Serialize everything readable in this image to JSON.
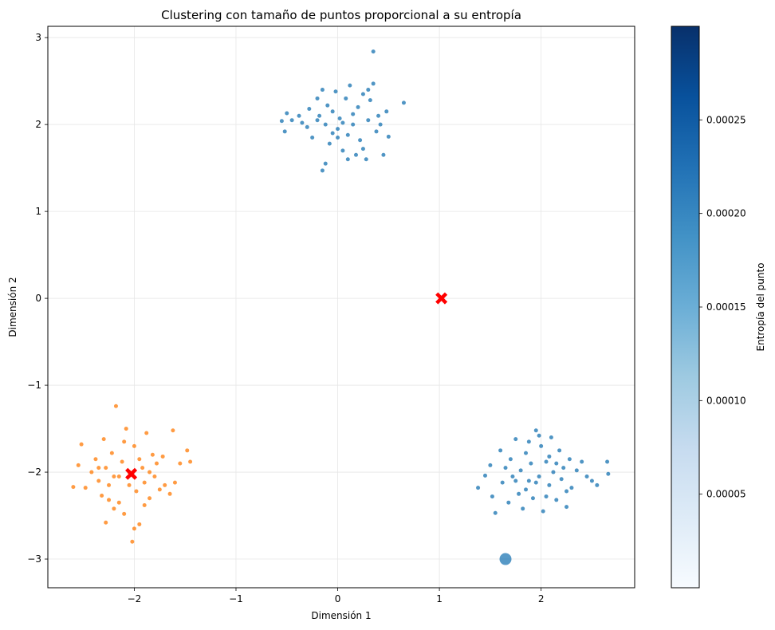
{
  "chart_data": {
    "type": "scatter",
    "title": "Clustering con tamaño de puntos proporcional a su entropía",
    "xlabel": "Dimensión 1",
    "ylabel": "Dimensión 2",
    "xlim": [
      -2.85,
      2.92
    ],
    "ylim": [
      -3.33,
      3.13
    ],
    "xticks": [
      -2,
      -1,
      0,
      1,
      2
    ],
    "yticks": [
      -3,
      -2,
      -1,
      0,
      1,
      2,
      3
    ],
    "grid": true,
    "colorbar": {
      "label": "Entropía del punto",
      "range": [
        0.0,
        0.0003
      ],
      "ticks": [
        5e-05,
        0.0001,
        0.00015,
        0.0002,
        0.00025
      ],
      "tick_labels": [
        "0.00005",
        "0.00010",
        "0.00015",
        "0.00020",
        "0.00025"
      ],
      "colormap": "Blues"
    },
    "colors": {
      "cluster_blue": "#1f77b4",
      "cluster_orange": "#ff7f0e",
      "centroid": "#ff0000"
    },
    "clusters": [
      {
        "center": [
          0.08,
          2.0
        ],
        "color": "cluster_blue",
        "points": [
          [
            -0.55,
            2.04
          ],
          [
            -0.5,
            2.13
          ],
          [
            -0.52,
            1.92
          ],
          [
            -0.45,
            2.05
          ],
          [
            -0.38,
            2.1
          ],
          [
            -0.35,
            2.02
          ],
          [
            -0.3,
            1.97
          ],
          [
            -0.28,
            2.18
          ],
          [
            -0.25,
            1.85
          ],
          [
            -0.2,
            2.3
          ],
          [
            -0.18,
            2.1
          ],
          [
            -0.15,
            2.4
          ],
          [
            -0.12,
            2.0
          ],
          [
            -0.1,
            2.22
          ],
          [
            -0.08,
            1.78
          ],
          [
            -0.05,
            2.15
          ],
          [
            -0.02,
            2.38
          ],
          [
            0.0,
            1.95
          ],
          [
            0.02,
            2.07
          ],
          [
            0.05,
            1.7
          ],
          [
            0.08,
            2.3
          ],
          [
            0.1,
            1.88
          ],
          [
            0.12,
            2.45
          ],
          [
            0.15,
            2.0
          ],
          [
            0.18,
            1.65
          ],
          [
            0.2,
            2.2
          ],
          [
            0.22,
            1.82
          ],
          [
            0.25,
            2.35
          ],
          [
            0.28,
            1.6
          ],
          [
            0.3,
            2.05
          ],
          [
            0.32,
            2.28
          ],
          [
            0.35,
            2.47
          ],
          [
            0.38,
            1.92
          ],
          [
            0.4,
            2.1
          ],
          [
            0.42,
            2.0
          ],
          [
            0.45,
            1.65
          ],
          [
            0.48,
            2.15
          ],
          [
            0.5,
            1.86
          ],
          [
            0.65,
            2.25
          ],
          [
            0.35,
            2.84
          ],
          [
            -0.15,
            1.47
          ],
          [
            -0.12,
            1.55
          ],
          [
            0.0,
            1.85
          ],
          [
            0.1,
            1.6
          ],
          [
            0.15,
            2.12
          ],
          [
            -0.05,
            1.9
          ],
          [
            0.25,
            1.72
          ],
          [
            0.3,
            2.4
          ],
          [
            -0.2,
            2.05
          ],
          [
            0.05,
            2.02
          ]
        ],
        "centroid": null
      },
      {
        "center": [
          2.0,
          -2.0
        ],
        "color": "cluster_blue",
        "points": [
          [
            1.38,
            -2.18
          ],
          [
            1.45,
            -2.04
          ],
          [
            1.5,
            -1.92
          ],
          [
            1.52,
            -2.28
          ],
          [
            1.55,
            -2.47
          ],
          [
            1.6,
            -1.75
          ],
          [
            1.62,
            -2.12
          ],
          [
            1.65,
            -1.95
          ],
          [
            1.68,
            -2.35
          ],
          [
            1.7,
            -1.85
          ],
          [
            1.72,
            -2.05
          ],
          [
            1.75,
            -1.62
          ],
          [
            1.78,
            -2.25
          ],
          [
            1.8,
            -1.98
          ],
          [
            1.82,
            -2.42
          ],
          [
            1.85,
            -1.78
          ],
          [
            1.88,
            -2.1
          ],
          [
            1.9,
            -1.9
          ],
          [
            1.92,
            -2.3
          ],
          [
            1.95,
            -1.52
          ],
          [
            1.98,
            -2.05
          ],
          [
            2.0,
            -1.7
          ],
          [
            2.02,
            -2.45
          ],
          [
            2.05,
            -1.88
          ],
          [
            2.08,
            -2.15
          ],
          [
            2.1,
            -1.6
          ],
          [
            2.12,
            -2.0
          ],
          [
            2.15,
            -2.32
          ],
          [
            2.18,
            -1.75
          ],
          [
            2.2,
            -2.08
          ],
          [
            2.22,
            -1.95
          ],
          [
            2.25,
            -2.4
          ],
          [
            2.28,
            -1.85
          ],
          [
            2.3,
            -2.18
          ],
          [
            2.35,
            -1.98
          ],
          [
            2.4,
            -1.88
          ],
          [
            2.45,
            -2.05
          ],
          [
            2.5,
            -2.1
          ],
          [
            2.55,
            -2.15
          ],
          [
            2.65,
            -1.88
          ],
          [
            2.66,
            -2.02
          ],
          [
            1.98,
            -1.58
          ],
          [
            2.05,
            -2.28
          ],
          [
            1.88,
            -1.65
          ],
          [
            2.15,
            -1.9
          ],
          [
            1.75,
            -2.1
          ],
          [
            2.25,
            -2.22
          ],
          [
            1.95,
            -2.12
          ],
          [
            2.08,
            -1.82
          ],
          [
            1.85,
            -2.2
          ]
        ],
        "centroid": null
      },
      {
        "center": [
          -2.0,
          -2.0
        ],
        "color": "cluster_orange",
        "points": [
          [
            -2.6,
            -2.17
          ],
          [
            -2.55,
            -1.92
          ],
          [
            -2.52,
            -1.68
          ],
          [
            -2.48,
            -2.18
          ],
          [
            -2.42,
            -2.0
          ],
          [
            -2.38,
            -1.85
          ],
          [
            -2.35,
            -2.1
          ],
          [
            -2.32,
            -2.27
          ],
          [
            -2.3,
            -1.62
          ],
          [
            -2.28,
            -1.95
          ],
          [
            -2.25,
            -2.15
          ],
          [
            -2.22,
            -1.78
          ],
          [
            -2.2,
            -2.05
          ],
          [
            -2.18,
            -1.24
          ],
          [
            -2.15,
            -2.35
          ],
          [
            -2.12,
            -1.88
          ],
          [
            -2.1,
            -2.48
          ],
          [
            -2.08,
            -1.5
          ],
          [
            -2.05,
            -2.0
          ],
          [
            -2.02,
            -2.8
          ],
          [
            -2.0,
            -1.7
          ],
          [
            -1.98,
            -2.22
          ],
          [
            -1.95,
            -2.6
          ],
          [
            -1.92,
            -1.95
          ],
          [
            -1.9,
            -2.12
          ],
          [
            -1.88,
            -1.55
          ],
          [
            -1.85,
            -2.3
          ],
          [
            -1.82,
            -1.8
          ],
          [
            -1.8,
            -2.05
          ],
          [
            -1.78,
            -1.9
          ],
          [
            -1.75,
            -2.2
          ],
          [
            -1.72,
            -1.82
          ],
          [
            -1.7,
            -2.15
          ],
          [
            -1.65,
            -2.25
          ],
          [
            -1.62,
            -1.52
          ],
          [
            -1.6,
            -2.12
          ],
          [
            -1.55,
            -1.9
          ],
          [
            -1.48,
            -1.75
          ],
          [
            -1.45,
            -1.88
          ],
          [
            -2.28,
            -2.58
          ],
          [
            -2.2,
            -2.42
          ],
          [
            -2.1,
            -1.65
          ],
          [
            -2.0,
            -2.65
          ],
          [
            -1.9,
            -2.38
          ],
          [
            -2.35,
            -1.95
          ],
          [
            -2.15,
            -2.05
          ],
          [
            -1.95,
            -1.85
          ],
          [
            -2.05,
            -2.15
          ],
          [
            -2.25,
            -2.32
          ],
          [
            -1.85,
            -2.0
          ]
        ],
        "centroid": [
          -2.03,
          -2.02
        ]
      }
    ],
    "outlier": {
      "x": 1.65,
      "y": -3.0,
      "color": "cluster_blue"
    },
    "centroids": [
      [
        -2.03,
        -2.02
      ],
      [
        1.02,
        0.0
      ]
    ]
  }
}
